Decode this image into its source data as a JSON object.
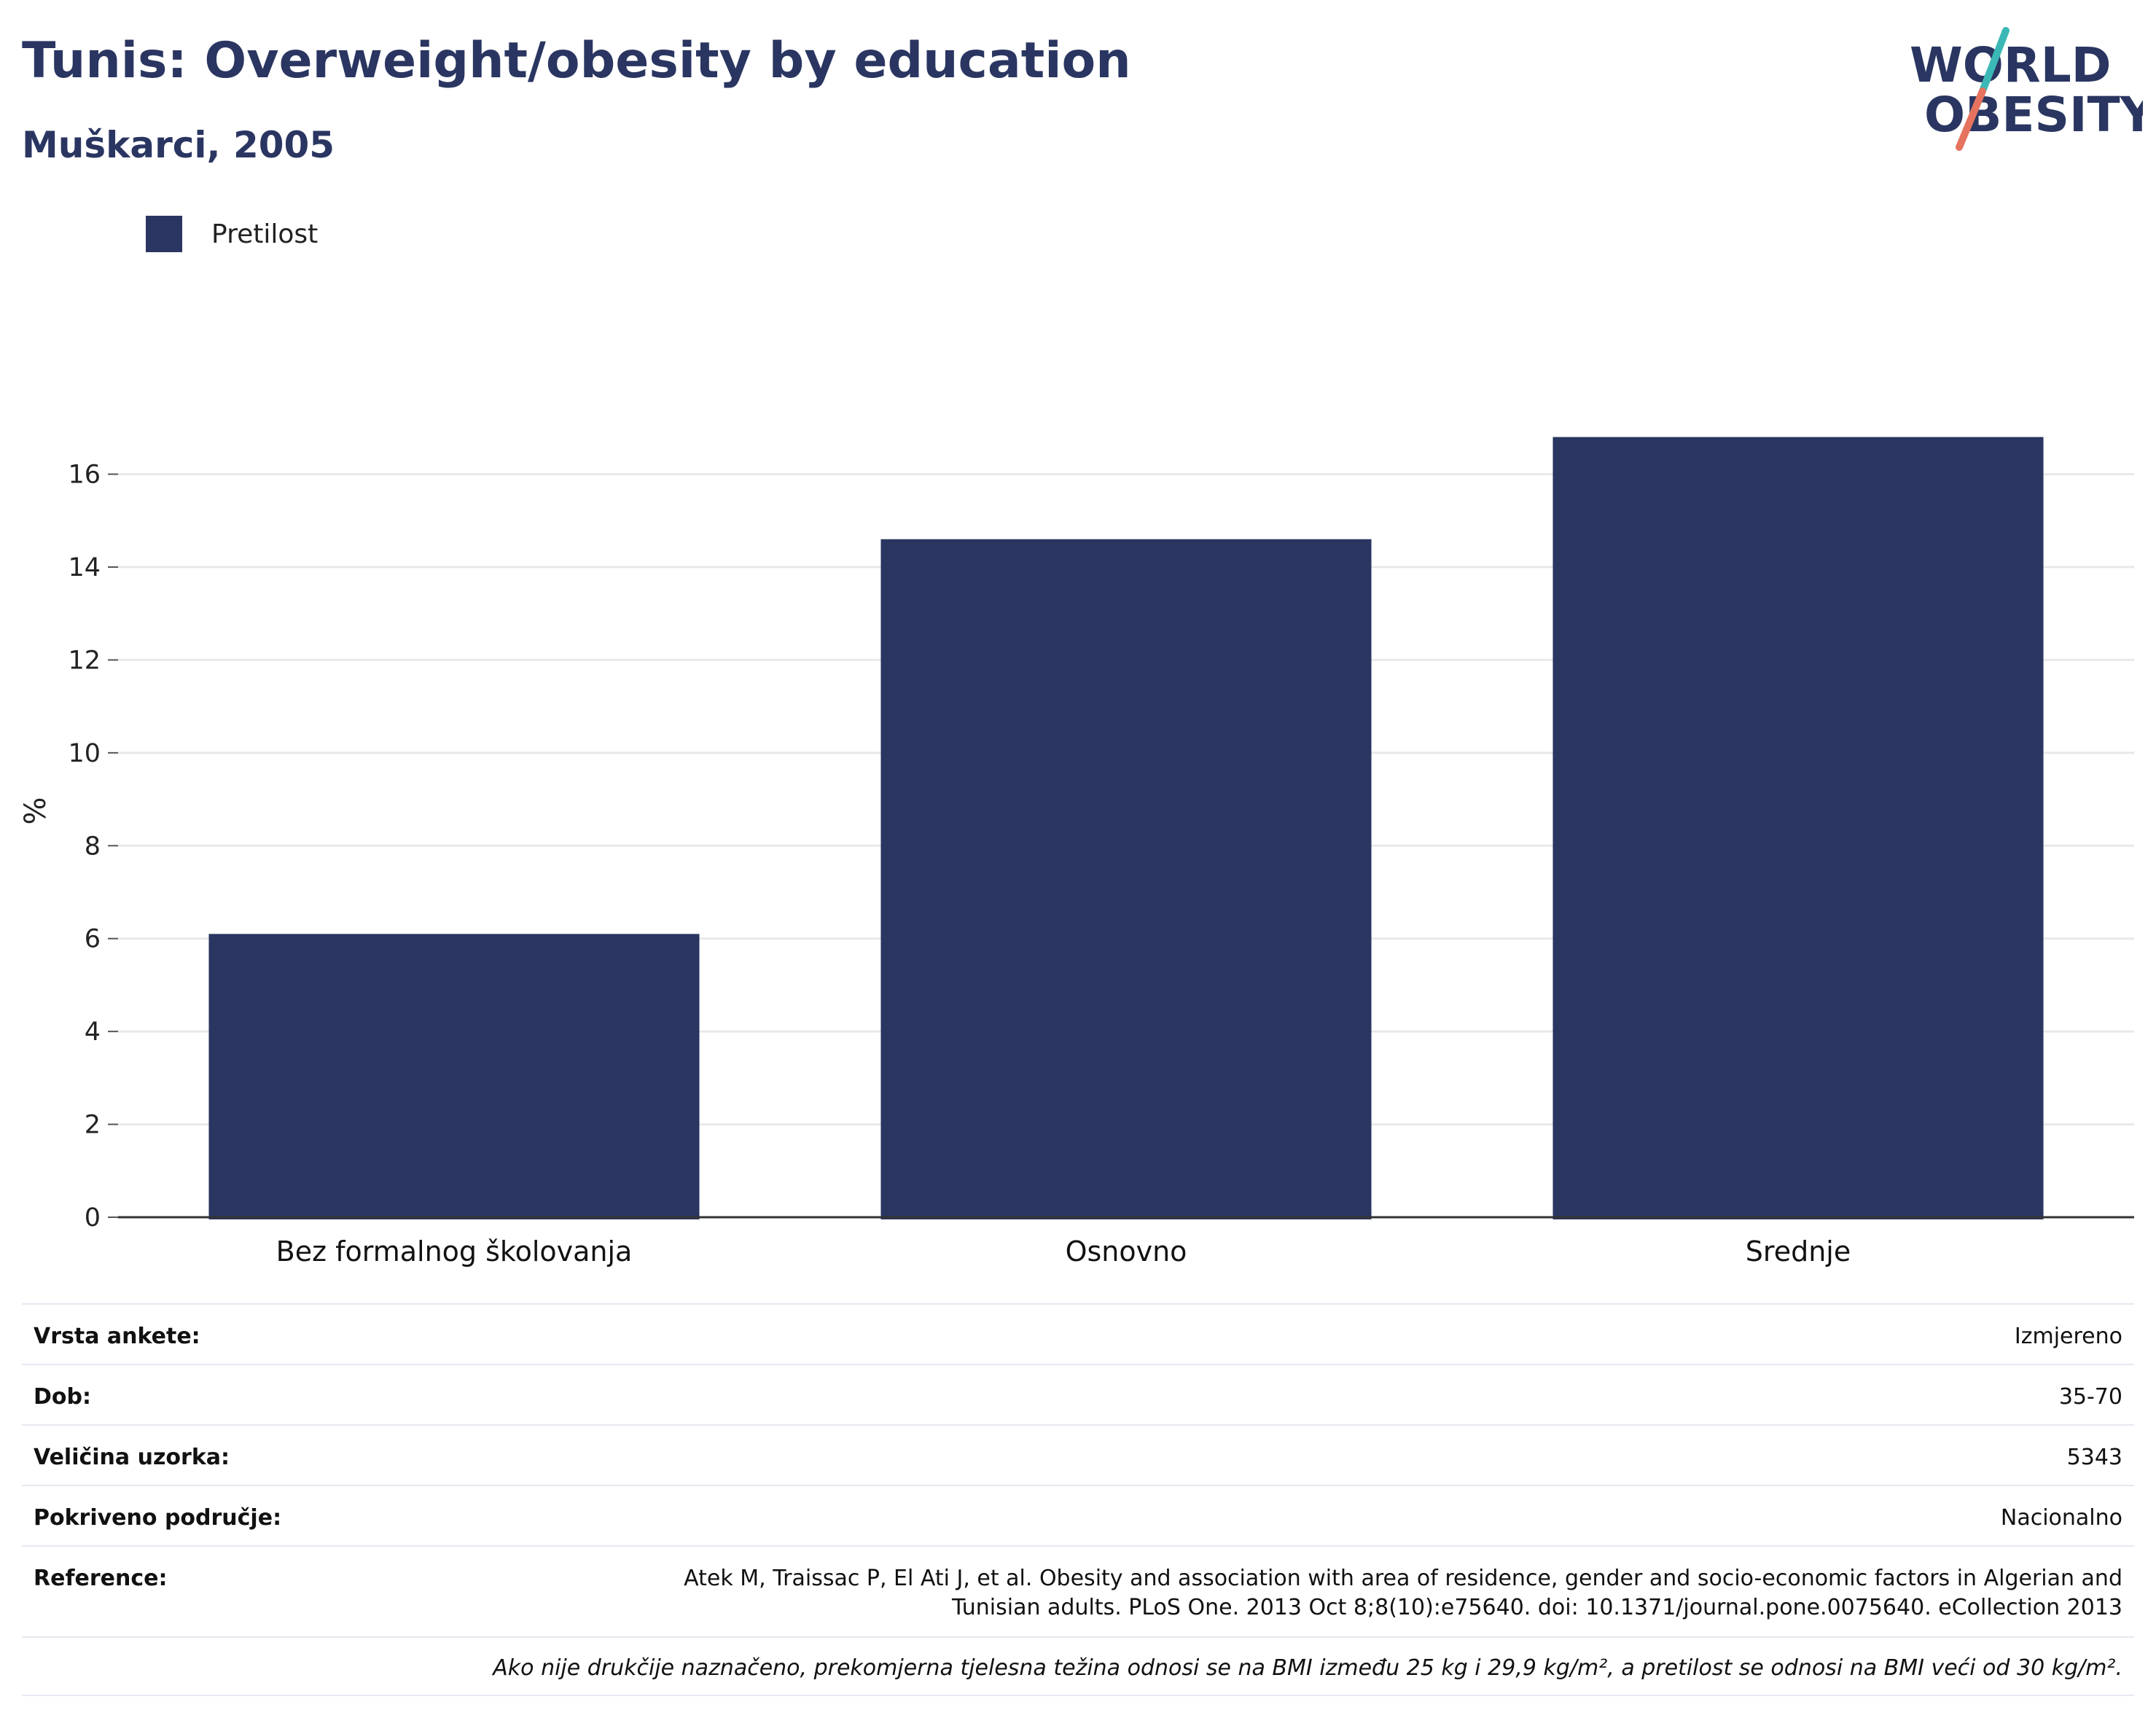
{
  "header": {
    "title": "Tunis: Overweight/obesity by education",
    "subtitle": "Muškarci, 2005"
  },
  "logo": {
    "line1": "WORLD",
    "line2": "OBESITY",
    "colors": {
      "text": "#2a3661",
      "slash_top": "#3bb8b5",
      "slash_bottom": "#e5735e"
    }
  },
  "legend": {
    "items": [
      {
        "label": "Pretilost",
        "color": "#2a3661"
      }
    ],
    "placement": "top-left"
  },
  "chart_data": {
    "type": "bar",
    "title": "Tunis: Overweight/obesity by education",
    "subtitle": "Muškarci, 2005",
    "xlabel": "",
    "ylabel": "%",
    "categories": [
      "Bez formalnog školovanja",
      "Osnovno",
      "Srednje"
    ],
    "series": [
      {
        "name": "Pretilost",
        "color": "#2a3661",
        "values": [
          6.1,
          14.6,
          16.8
        ]
      }
    ],
    "ylim": [
      0,
      17.5
    ],
    "yticks": [
      0,
      2,
      4,
      6,
      8,
      10,
      12,
      14,
      16
    ],
    "grid": true
  },
  "info": {
    "rows": [
      {
        "label": "Vrsta ankete:",
        "value": "Izmjereno"
      },
      {
        "label": "Dob:",
        "value": "35-70"
      },
      {
        "label": "Veličina uzorka:",
        "value": "5343"
      },
      {
        "label": "Pokriveno područje:",
        "value": "Nacionalno"
      }
    ],
    "reference": {
      "label": "Reference:",
      "line1": "Atek M, Traissac P, El Ati J, et al. Obesity and association with area of residence, gender and socio-economic factors in Algerian and",
      "line2": "Tunisian adults. PLoS One. 2013 Oct 8;8(10):e75640. doi: 10.1371/journal.pone.0075640. eCollection 2013"
    },
    "note": "Ako nije drukčije naznačeno, prekomjerna tjelesna težina odnosi se na BMI između 25 kg i 29,9 kg/m², a pretilost se odnosi na BMI veći od 30 kg/m²."
  }
}
